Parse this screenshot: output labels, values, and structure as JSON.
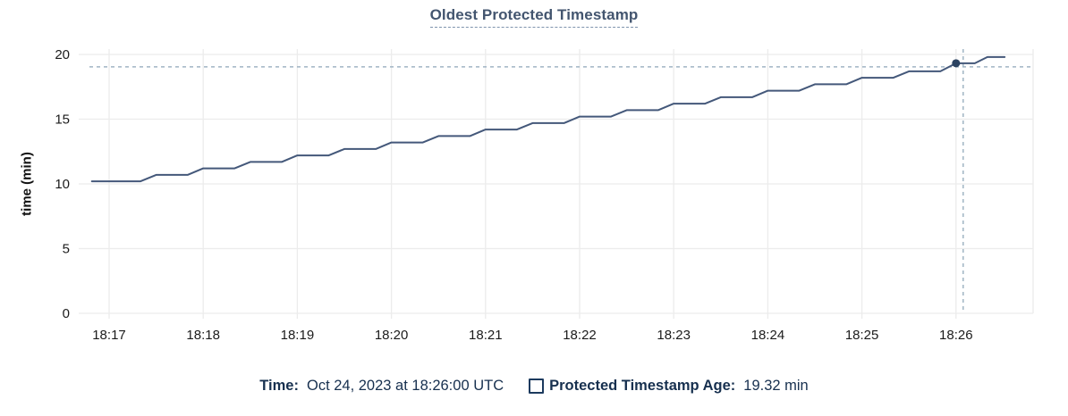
{
  "title": "Oldest Protected Timestamp",
  "chart_data": {
    "type": "line",
    "title": "Oldest Protected Timestamp",
    "xlabel": "",
    "ylabel": "time (min)",
    "ylim": [
      0,
      20
    ],
    "y_ticks": [
      0,
      5,
      10,
      15,
      20
    ],
    "x_ticks": [
      "18:17",
      "18:18",
      "18:19",
      "18:20",
      "18:21",
      "18:22",
      "18:23",
      "18:24",
      "18:25",
      "18:26"
    ],
    "x_domain": [
      "18:16:42",
      "18:26:49"
    ],
    "grid": true,
    "legend_position": "bottom",
    "series": [
      {
        "name": "Protected Timestamp Age",
        "unit": "min",
        "points": [
          [
            "18:16:49",
            10.2
          ],
          [
            "18:17:20",
            10.2
          ],
          [
            "18:17:30",
            10.7
          ],
          [
            "18:17:50",
            10.7
          ],
          [
            "18:18:00",
            11.2
          ],
          [
            "18:18:20",
            11.2
          ],
          [
            "18:18:30",
            11.7
          ],
          [
            "18:18:50",
            11.7
          ],
          [
            "18:19:00",
            12.2
          ],
          [
            "18:19:20",
            12.2
          ],
          [
            "18:19:30",
            12.7
          ],
          [
            "18:19:50",
            12.7
          ],
          [
            "18:20:00",
            13.2
          ],
          [
            "18:20:20",
            13.2
          ],
          [
            "18:20:30",
            13.7
          ],
          [
            "18:20:50",
            13.7
          ],
          [
            "18:21:00",
            14.2
          ],
          [
            "18:21:20",
            14.2
          ],
          [
            "18:21:30",
            14.7
          ],
          [
            "18:21:50",
            14.7
          ],
          [
            "18:22:00",
            15.2
          ],
          [
            "18:22:20",
            15.2
          ],
          [
            "18:22:30",
            15.7
          ],
          [
            "18:22:50",
            15.7
          ],
          [
            "18:23:00",
            16.2
          ],
          [
            "18:23:20",
            16.2
          ],
          [
            "18:23:30",
            16.7
          ],
          [
            "18:23:50",
            16.7
          ],
          [
            "18:24:00",
            17.2
          ],
          [
            "18:24:20",
            17.2
          ],
          [
            "18:24:30",
            17.7
          ],
          [
            "18:24:50",
            17.7
          ],
          [
            "18:25:00",
            18.2
          ],
          [
            "18:25:20",
            18.2
          ],
          [
            "18:25:30",
            18.7
          ],
          [
            "18:25:50",
            18.7
          ],
          [
            "18:26:00",
            19.32
          ],
          [
            "18:26:12",
            19.32
          ],
          [
            "18:26:20",
            19.8
          ],
          [
            "18:26:31",
            19.8
          ]
        ]
      }
    ],
    "crosshair": {
      "x": "18:26:00",
      "y": 19.32
    }
  },
  "tooltip": {
    "time_label": "Time:",
    "time_value": "Oct 24, 2023 at 18:26:00 UTC",
    "series_label": "Protected Timestamp Age:",
    "series_value": "19.32 min",
    "checkbox_checked": false
  },
  "colors": {
    "line": "#44587a",
    "dot": "#2b4261",
    "grid": "#ececec",
    "crosshair": "#a0b4c4",
    "tick_text": "#1b1b1b",
    "title_text": "#43556f",
    "legend_text": "#17304f"
  }
}
